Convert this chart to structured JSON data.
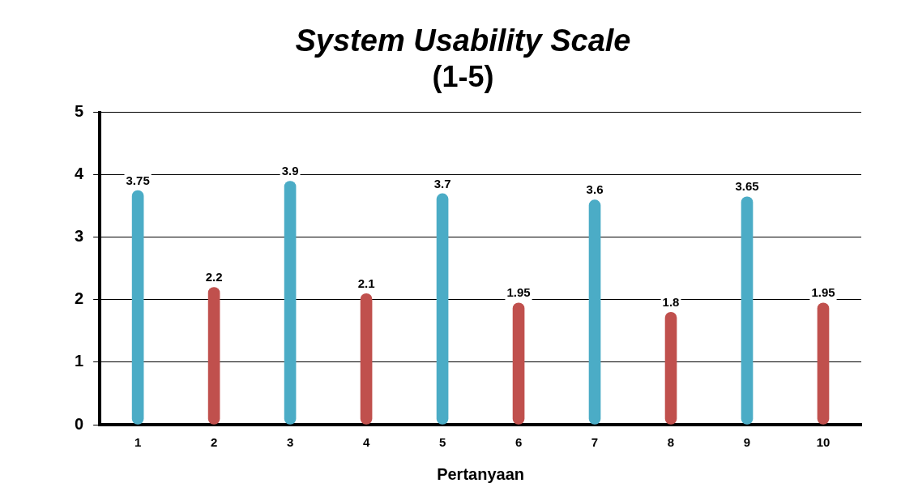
{
  "chart_data": {
    "type": "bar",
    "title": "System Usability Scale",
    "subtitle": "(1-5)",
    "xlabel": "Pertanyaan",
    "categories": [
      "1",
      "2",
      "3",
      "4",
      "5",
      "6",
      "7",
      "8",
      "9",
      "10"
    ],
    "values": [
      3.75,
      2.2,
      3.9,
      2.1,
      3.7,
      1.95,
      3.6,
      1.8,
      3.65,
      1.95
    ],
    "colors": [
      "#4bacc6",
      "#c0504d",
      "#4bacc6",
      "#c0504d",
      "#4bacc6",
      "#c0504d",
      "#4bacc6",
      "#c0504d",
      "#4bacc6",
      "#c0504d"
    ],
    "ylim": [
      0,
      5
    ],
    "yticks": [
      0,
      1,
      2,
      3,
      4,
      5
    ],
    "grid": "y",
    "data_labels": true,
    "legend": false
  }
}
